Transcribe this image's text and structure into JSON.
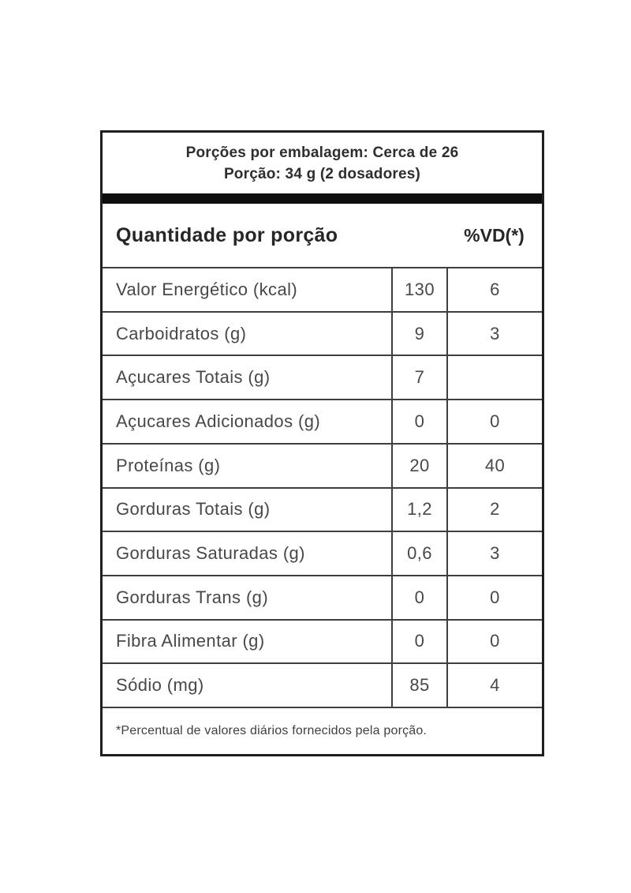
{
  "label": {
    "servings_line1": "Porções por embalagem: Cerca de 26",
    "servings_line2": "Porção: 34 g (2 dosadores)",
    "header": {
      "quantity": "Quantidade por porção",
      "dv": "%VD(*)"
    },
    "rows": [
      {
        "name": "Valor Energético (kcal)",
        "amount": "130",
        "dv": "6"
      },
      {
        "name": "Carboidratos (g)",
        "amount": "9",
        "dv": "3"
      },
      {
        "name": "Açucares Totais (g)",
        "amount": "7",
        "dv": ""
      },
      {
        "name": "Açucares Adicionados (g)",
        "amount": "0",
        "dv": "0"
      },
      {
        "name": "Proteínas (g)",
        "amount": "20",
        "dv": "40"
      },
      {
        "name": "Gorduras Totais (g)",
        "amount": "1,2",
        "dv": "2"
      },
      {
        "name": "Gorduras Saturadas (g)",
        "amount": "0,6",
        "dv": "3"
      },
      {
        "name": "Gorduras Trans (g)",
        "amount": "0",
        "dv": "0"
      },
      {
        "name": "Fibra Alimentar (g)",
        "amount": "0",
        "dv": "0"
      },
      {
        "name": "Sódio (mg)",
        "amount": "85",
        "dv": "4"
      }
    ],
    "footnote": "*Percentual de valores diários fornecidos pela porção.",
    "colors": {
      "background": "#ffffff",
      "text": "#484848",
      "heading_text": "#262626",
      "inner_border": "#3e3e3e",
      "outer_border": "#1f1f1f",
      "divider_bar": "#0d0d0d"
    }
  }
}
